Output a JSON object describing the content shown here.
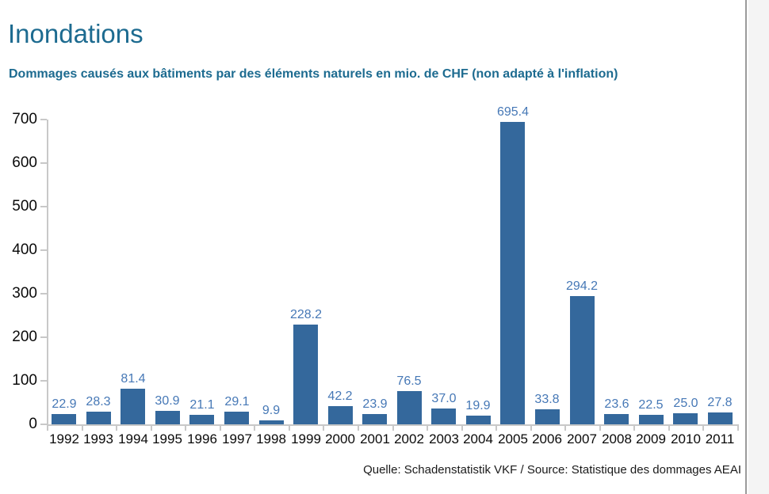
{
  "page": {
    "title": "Inondations",
    "subtitle": "Dommages causés aux bâtiments par des éléments naturels en mio. de CHF (non adapté à l'inflation)",
    "source": "Quelle: Schadenstatistik VKF / Source: Statistique des dommages AEAI"
  },
  "colors": {
    "heading": "#1d6b90",
    "bar": "#34689c",
    "value_label": "#4678b6",
    "axis": "#c8c8c8",
    "tick_text": "#0a0a0a"
  },
  "chart_data": {
    "type": "bar",
    "title": "Dommages causés aux bâtiments par des éléments naturels en mio. de CHF (non adapté à l'inflation)",
    "categories": [
      "1992",
      "1993",
      "1994",
      "1995",
      "1996",
      "1997",
      "1998",
      "1999",
      "2000",
      "2001",
      "2002",
      "2003",
      "2004",
      "2005",
      "2006",
      "2007",
      "2008",
      "2009",
      "2010",
      "2011"
    ],
    "values": [
      22.9,
      28.3,
      81.4,
      30.9,
      21.1,
      29.1,
      9.9,
      228.2,
      42.2,
      23.9,
      76.5,
      37.0,
      19.9,
      695.4,
      33.8,
      294.2,
      23.6,
      22.5,
      25.0,
      27.8
    ],
    "value_label_decimals": 1,
    "xlabel": "",
    "ylabel": "",
    "ylim": [
      0,
      700
    ],
    "yticks": [
      0,
      100,
      200,
      300,
      400,
      500,
      600,
      700
    ],
    "grid": false,
    "legend": false,
    "value_labels_shown": true,
    "source": "Quelle: Schadenstatistik VKF / Source: Statistique des dommages AEAI"
  }
}
